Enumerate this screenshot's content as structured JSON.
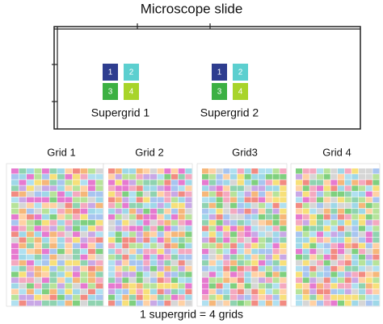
{
  "title": "Microscope slide",
  "supergrids": [
    {
      "label": "Supergrid 1",
      "blocks": [
        "1",
        "2",
        "3",
        "4"
      ]
    },
    {
      "label": "Supergrid 2",
      "blocks": [
        "1",
        "2",
        "3",
        "4"
      ]
    }
  ],
  "grids": [
    {
      "label": "Grid 1"
    },
    {
      "label": "Grid 2"
    },
    {
      "label": "Grid3"
    },
    {
      "label": "Grid 4"
    }
  ],
  "caption": "1 supergrid = 4 grids"
}
